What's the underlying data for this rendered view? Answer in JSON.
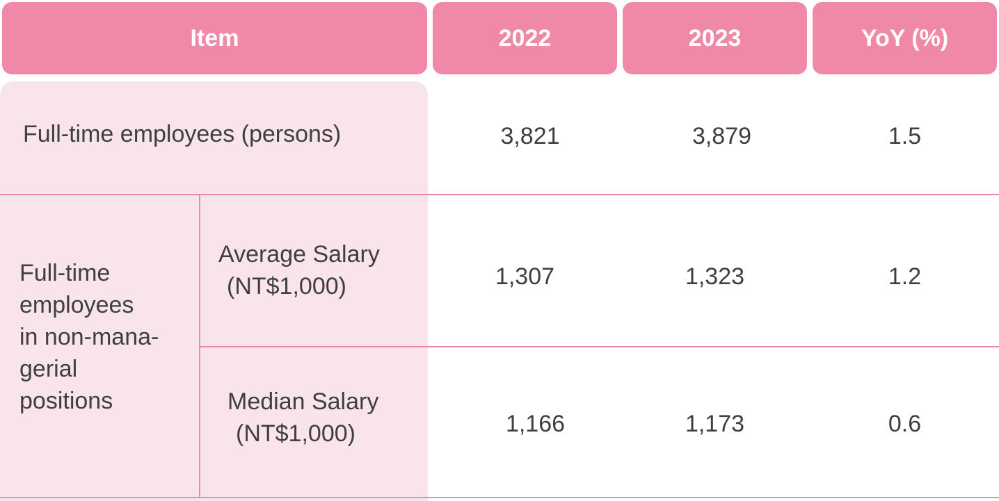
{
  "table": {
    "headers": {
      "item": "Item",
      "y2022": "2022",
      "y2023": "2023",
      "yoy": "YoY (%)"
    },
    "rows": [
      {
        "label": "Full-time employees (persons)",
        "v2022": "3,821",
        "v2023": "3,879",
        "yoy": "1.5"
      }
    ],
    "group": {
      "label_lines": [
        "Full-time",
        "employees",
        "in non-mana-",
        "gerial",
        "positions"
      ],
      "subrows": [
        {
          "label_lines": [
            "Average Salary",
            "(NT$1,000)"
          ],
          "v2022": "1,307",
          "v2023": "1,323",
          "yoy": "1.2"
        },
        {
          "label_lines": [
            "Median Salary",
            "(NT$1,000)"
          ],
          "v2022": "1,166",
          "v2023": "1,173",
          "yoy": "0.6"
        }
      ]
    }
  },
  "colors": {
    "header_bg": "#ef89a7",
    "label_bg": "#f9e4ec",
    "rule": "#e98aa8"
  }
}
